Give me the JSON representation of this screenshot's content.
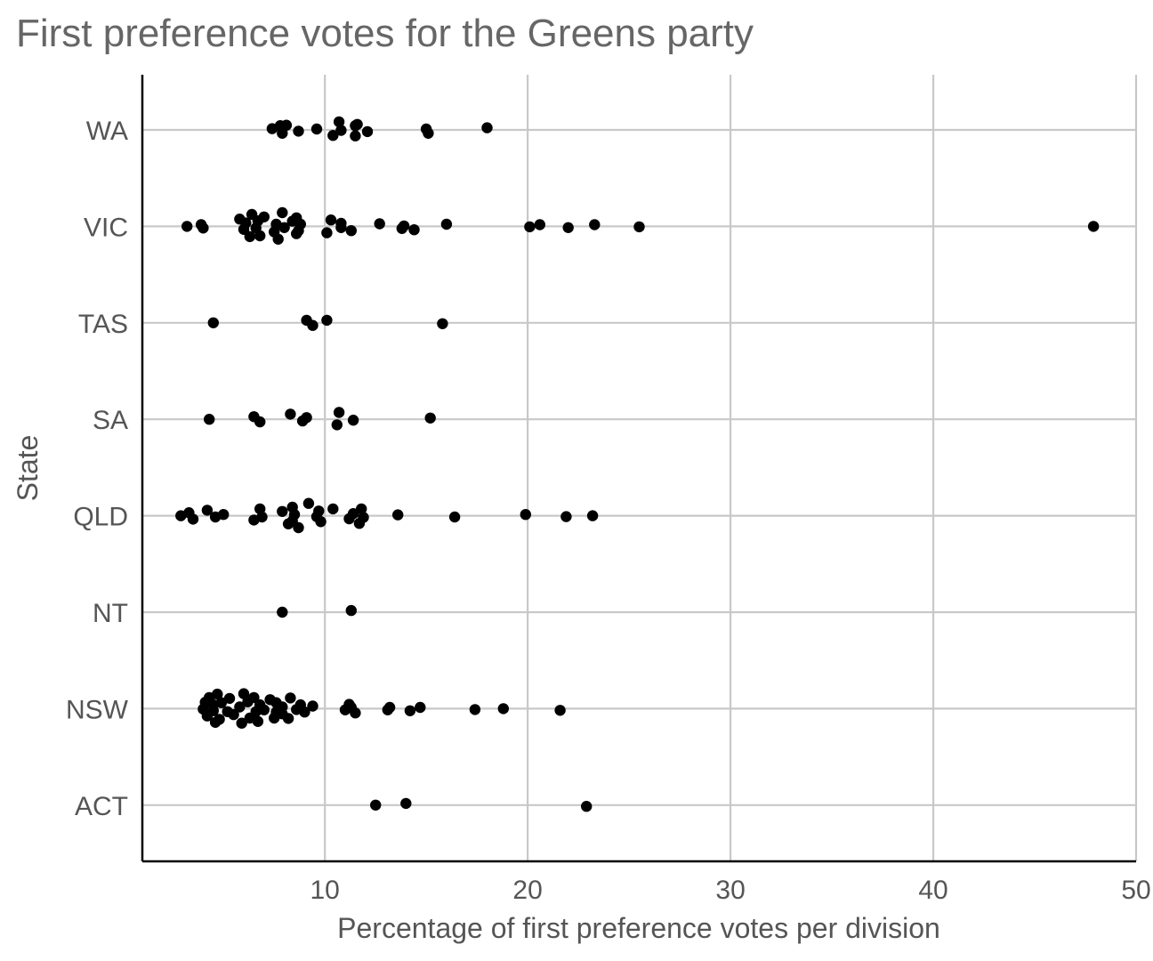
{
  "chart_data": {
    "type": "scatter",
    "title": "First preference votes for the Greens party",
    "xlabel": "Percentage of first preference votes per division",
    "ylabel": "State",
    "xlim": [
      1,
      50
    ],
    "xticks": [
      10,
      20,
      30,
      40,
      50
    ],
    "grid": true,
    "categories": [
      "WA",
      "VIC",
      "TAS",
      "SA",
      "QLD",
      "NT",
      "NSW",
      "ACT"
    ],
    "series": [
      {
        "name": "WA",
        "values": [
          {
            "x": 7.4,
            "jitter": 0.03
          },
          {
            "x": 7.9,
            "jitter": -0.08
          },
          {
            "x": 7.8,
            "jitter": 0.1
          },
          {
            "x": 8.1,
            "jitter": 0.11
          },
          {
            "x": 8.7,
            "jitter": -0.03
          },
          {
            "x": 9.6,
            "jitter": 0.02
          },
          {
            "x": 10.4,
            "jitter": -0.13
          },
          {
            "x": 10.7,
            "jitter": 0.19
          },
          {
            "x": 10.8,
            "jitter": -0.01
          },
          {
            "x": 11.5,
            "jitter": -0.14
          },
          {
            "x": 11.5,
            "jitter": 0.1
          },
          {
            "x": 11.6,
            "jitter": 0.13
          },
          {
            "x": 12.1,
            "jitter": -0.04
          },
          {
            "x": 15.1,
            "jitter": -0.08
          },
          {
            "x": 15.0,
            "jitter": 0.02
          },
          {
            "x": 18.0,
            "jitter": 0.05
          }
        ]
      },
      {
        "name": "VIC",
        "values": [
          {
            "x": 3.2,
            "jitter": 0.0
          },
          {
            "x": 3.9,
            "jitter": 0.04
          },
          {
            "x": 4.0,
            "jitter": -0.04
          },
          {
            "x": 5.8,
            "jitter": 0.17
          },
          {
            "x": 6.0,
            "jitter": -0.07
          },
          {
            "x": 6.1,
            "jitter": 0.08
          },
          {
            "x": 6.3,
            "jitter": -0.24
          },
          {
            "x": 6.4,
            "jitter": 0.28
          },
          {
            "x": 6.6,
            "jitter": -0.04
          },
          {
            "x": 6.7,
            "jitter": 0.13
          },
          {
            "x": 6.8,
            "jitter": -0.22
          },
          {
            "x": 7.0,
            "jitter": 0.22
          },
          {
            "x": 7.5,
            "jitter": -0.13
          },
          {
            "x": 7.6,
            "jitter": 0.05
          },
          {
            "x": 7.7,
            "jitter": -0.3
          },
          {
            "x": 7.9,
            "jitter": 0.32
          },
          {
            "x": 8.0,
            "jitter": -0.03
          },
          {
            "x": 8.4,
            "jitter": 0.12
          },
          {
            "x": 8.6,
            "jitter": -0.17
          },
          {
            "x": 8.6,
            "jitter": 0.2
          },
          {
            "x": 8.7,
            "jitter": -0.1
          },
          {
            "x": 8.8,
            "jitter": 0.05
          },
          {
            "x": 10.1,
            "jitter": -0.15
          },
          {
            "x": 10.3,
            "jitter": 0.15
          },
          {
            "x": 10.8,
            "jitter": -0.03
          },
          {
            "x": 10.8,
            "jitter": 0.07
          },
          {
            "x": 11.3,
            "jitter": -0.1
          },
          {
            "x": 12.7,
            "jitter": 0.06
          },
          {
            "x": 13.8,
            "jitter": -0.05
          },
          {
            "x": 13.9,
            "jitter": 0.01
          },
          {
            "x": 14.4,
            "jitter": -0.08
          },
          {
            "x": 16.0,
            "jitter": 0.05
          },
          {
            "x": 20.1,
            "jitter": -0.01
          },
          {
            "x": 20.6,
            "jitter": 0.04
          },
          {
            "x": 22.0,
            "jitter": -0.03
          },
          {
            "x": 23.3,
            "jitter": 0.04
          },
          {
            "x": 25.5,
            "jitter": -0.01
          },
          {
            "x": 47.9,
            "jitter": 0.0
          }
        ]
      },
      {
        "name": "TAS",
        "values": [
          {
            "x": 4.5,
            "jitter": 0.0
          },
          {
            "x": 9.1,
            "jitter": 0.06
          },
          {
            "x": 9.4,
            "jitter": -0.06
          },
          {
            "x": 10.1,
            "jitter": 0.06
          },
          {
            "x": 15.8,
            "jitter": -0.02
          }
        ]
      },
      {
        "name": "SA",
        "values": [
          {
            "x": 4.3,
            "jitter": 0.0
          },
          {
            "x": 6.5,
            "jitter": 0.06
          },
          {
            "x": 6.8,
            "jitter": -0.06
          },
          {
            "x": 8.3,
            "jitter": 0.12
          },
          {
            "x": 8.9,
            "jitter": -0.04
          },
          {
            "x": 9.1,
            "jitter": 0.04
          },
          {
            "x": 10.6,
            "jitter": -0.13
          },
          {
            "x": 10.7,
            "jitter": 0.16
          },
          {
            "x": 11.4,
            "jitter": -0.02
          },
          {
            "x": 15.2,
            "jitter": 0.03
          }
        ]
      },
      {
        "name": "QLD",
        "values": [
          {
            "x": 2.9,
            "jitter": 0.0
          },
          {
            "x": 3.3,
            "jitter": 0.07
          },
          {
            "x": 3.5,
            "jitter": -0.08
          },
          {
            "x": 4.2,
            "jitter": 0.13
          },
          {
            "x": 4.6,
            "jitter": -0.03
          },
          {
            "x": 5.0,
            "jitter": 0.03
          },
          {
            "x": 6.5,
            "jitter": -0.1
          },
          {
            "x": 6.8,
            "jitter": 0.16
          },
          {
            "x": 6.9,
            "jitter": -0.03
          },
          {
            "x": 7.9,
            "jitter": 0.1
          },
          {
            "x": 8.2,
            "jitter": -0.19
          },
          {
            "x": 8.4,
            "jitter": -0.12
          },
          {
            "x": 8.4,
            "jitter": 0.2
          },
          {
            "x": 8.5,
            "jitter": 0.03
          },
          {
            "x": 8.7,
            "jitter": -0.28
          },
          {
            "x": 9.2,
            "jitter": 0.29
          },
          {
            "x": 9.6,
            "jitter": -0.02
          },
          {
            "x": 9.7,
            "jitter": 0.11
          },
          {
            "x": 9.8,
            "jitter": -0.14
          },
          {
            "x": 10.4,
            "jitter": 0.16
          },
          {
            "x": 11.2,
            "jitter": -0.07
          },
          {
            "x": 11.4,
            "jitter": 0.05
          },
          {
            "x": 11.7,
            "jitter": -0.18
          },
          {
            "x": 11.8,
            "jitter": 0.16
          },
          {
            "x": 11.9,
            "jitter": -0.04
          },
          {
            "x": 13.6,
            "jitter": 0.02
          },
          {
            "x": 16.4,
            "jitter": -0.03
          },
          {
            "x": 19.9,
            "jitter": 0.03
          },
          {
            "x": 21.9,
            "jitter": -0.02
          },
          {
            "x": 23.2,
            "jitter": 0.0
          }
        ]
      },
      {
        "name": "NT",
        "values": [
          {
            "x": 7.9,
            "jitter": 0.0
          },
          {
            "x": 11.3,
            "jitter": 0.04
          }
        ]
      },
      {
        "name": "NSW",
        "values": [
          {
            "x": 4.0,
            "jitter": -0.01
          },
          {
            "x": 4.1,
            "jitter": 0.15
          },
          {
            "x": 4.2,
            "jitter": -0.17
          },
          {
            "x": 4.3,
            "jitter": 0.26
          },
          {
            "x": 4.5,
            "jitter": -0.05
          },
          {
            "x": 4.5,
            "jitter": 0.09
          },
          {
            "x": 4.6,
            "jitter": -0.32
          },
          {
            "x": 4.7,
            "jitter": 0.34
          },
          {
            "x": 4.8,
            "jitter": -0.25
          },
          {
            "x": 4.9,
            "jitter": 0.14
          },
          {
            "x": 5.2,
            "jitter": -0.07
          },
          {
            "x": 5.3,
            "jitter": 0.24
          },
          {
            "x": 5.5,
            "jitter": -0.14
          },
          {
            "x": 5.8,
            "jitter": 0.04
          },
          {
            "x": 5.9,
            "jitter": -0.34
          },
          {
            "x": 6.0,
            "jitter": 0.35
          },
          {
            "x": 6.2,
            "jitter": 0.16
          },
          {
            "x": 6.3,
            "jitter": -0.22
          },
          {
            "x": 6.5,
            "jitter": 0.26
          },
          {
            "x": 6.6,
            "jitter": -0.07
          },
          {
            "x": 6.7,
            "jitter": -0.3
          },
          {
            "x": 6.8,
            "jitter": 0.09
          },
          {
            "x": 7.0,
            "jitter": -0.03
          },
          {
            "x": 7.3,
            "jitter": 0.21
          },
          {
            "x": 7.5,
            "jitter": -0.22
          },
          {
            "x": 7.6,
            "jitter": -0.08
          },
          {
            "x": 7.6,
            "jitter": 0.14
          },
          {
            "x": 7.9,
            "jitter": -0.12
          },
          {
            "x": 7.9,
            "jitter": 0.04
          },
          {
            "x": 8.2,
            "jitter": -0.23
          },
          {
            "x": 8.3,
            "jitter": 0.25
          },
          {
            "x": 8.6,
            "jitter": -0.02
          },
          {
            "x": 8.8,
            "jitter": 0.09
          },
          {
            "x": 9.0,
            "jitter": -0.08
          },
          {
            "x": 9.4,
            "jitter": 0.06
          },
          {
            "x": 11.0,
            "jitter": -0.03
          },
          {
            "x": 11.2,
            "jitter": 0.1
          },
          {
            "x": 11.3,
            "jitter": 0.03
          },
          {
            "x": 11.5,
            "jitter": -0.1
          },
          {
            "x": 13.1,
            "jitter": -0.03
          },
          {
            "x": 13.2,
            "jitter": 0.03
          },
          {
            "x": 14.2,
            "jitter": -0.05
          },
          {
            "x": 14.7,
            "jitter": 0.03
          },
          {
            "x": 17.4,
            "jitter": -0.02
          },
          {
            "x": 18.8,
            "jitter": 0.0
          },
          {
            "x": 21.6,
            "jitter": -0.04
          }
        ]
      },
      {
        "name": "ACT",
        "values": [
          {
            "x": 12.5,
            "jitter": 0.0
          },
          {
            "x": 14.0,
            "jitter": 0.04
          },
          {
            "x": 22.9,
            "jitter": -0.03
          }
        ]
      }
    ]
  }
}
